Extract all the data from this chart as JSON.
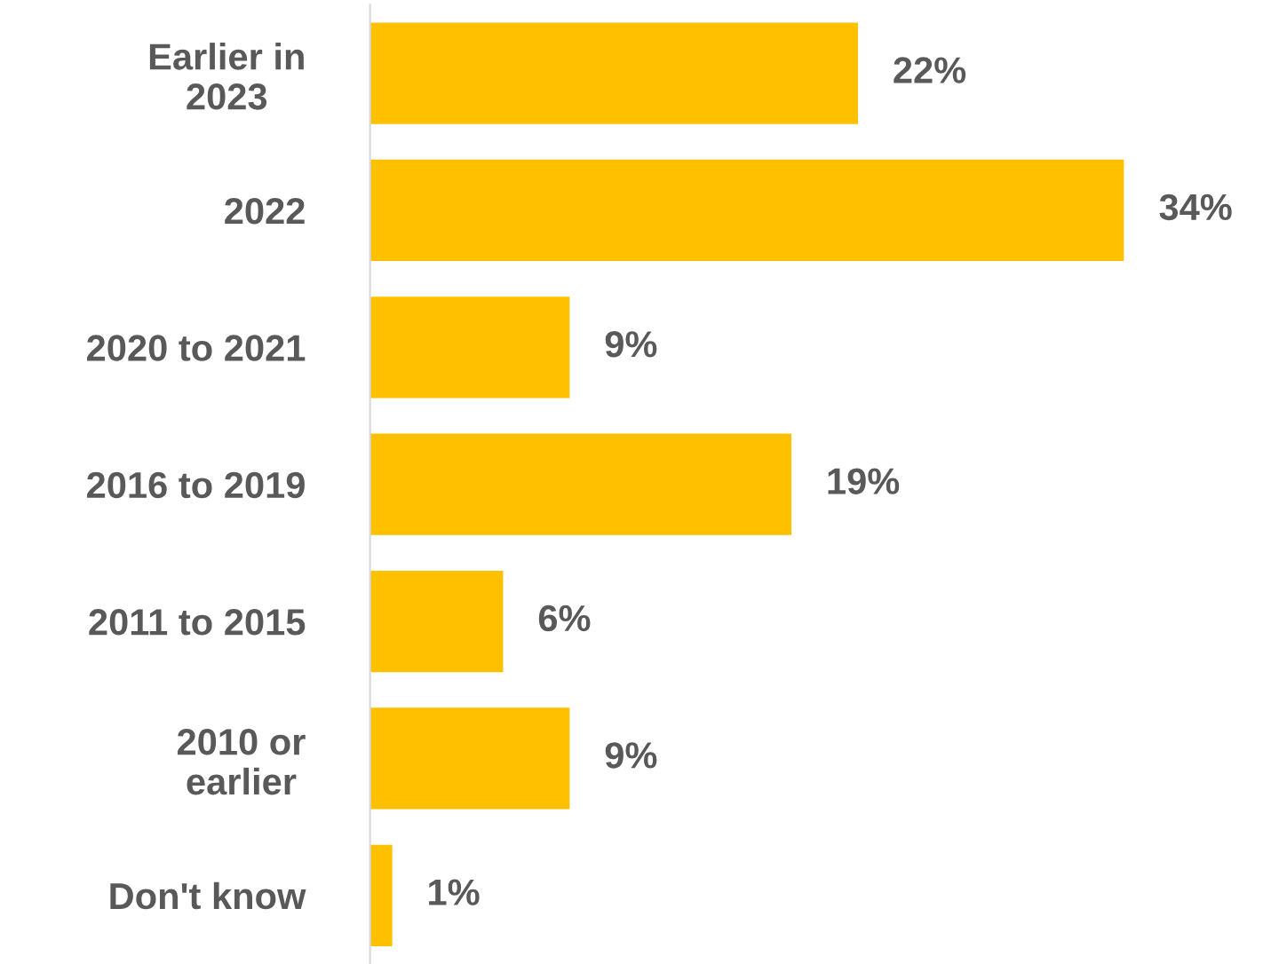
{
  "chart_data": {
    "type": "bar",
    "orientation": "horizontal",
    "categories": [
      "Earlier in\n2023",
      "2022",
      "2020 to 2021",
      "2016 to 2019",
      "2011 to 2015",
      "2010 or\nearlier",
      "Don't know"
    ],
    "values": [
      22,
      34,
      9,
      19,
      6,
      9,
      1
    ],
    "value_labels": [
      "22%",
      "34%",
      "9%",
      "19%",
      "6%",
      "9%",
      "1%"
    ],
    "color": "#ffc000",
    "grid": false,
    "legend": false
  }
}
